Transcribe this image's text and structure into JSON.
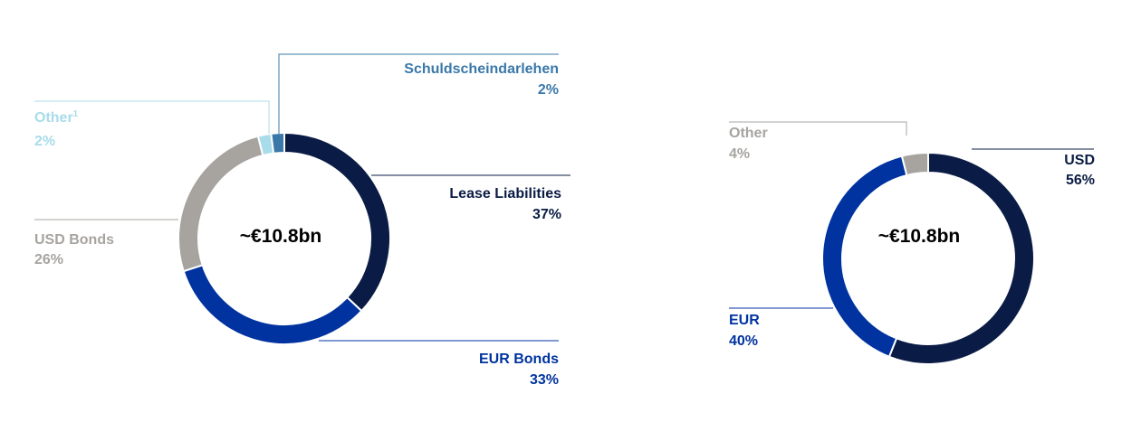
{
  "colors": {
    "navy": "#0a1c45",
    "royal_blue": "#0033a0",
    "grey": "#a7a4a0",
    "light_blue": "#a8dcea",
    "steel_blue": "#3a78aa",
    "center_text": "#000000"
  },
  "chart_data": [
    {
      "type": "pie",
      "variant": "donut",
      "center_label": "~€10.8bn",
      "start_angle_deg": 0,
      "direction": "clockwise",
      "slices": [
        {
          "name": "Lease Liabilities",
          "pct_label": "37%",
          "value": 37,
          "color": "#0a1c45",
          "label_color": "#0a1c45"
        },
        {
          "name": "EUR Bonds",
          "pct_label": "33%",
          "value": 33,
          "color": "#0033a0",
          "label_color": "#0033a0"
        },
        {
          "name": "USD Bonds",
          "pct_label": "26%",
          "value": 26,
          "color": "#a7a4a0",
          "label_color": "#a7a4a0"
        },
        {
          "name": "Other",
          "footnote": "1",
          "pct_label": "2%",
          "value": 2,
          "color": "#a8dcea",
          "label_color": "#a8dcea"
        },
        {
          "name": "Schuldscheindarlehen",
          "pct_label": "2%",
          "value": 2,
          "color": "#3a78aa",
          "label_color": "#3a78aa"
        }
      ]
    },
    {
      "type": "pie",
      "variant": "donut",
      "center_label": "~€10.8bn",
      "start_angle_deg": 0,
      "direction": "clockwise",
      "slices": [
        {
          "name": "USD",
          "pct_label": "56%",
          "value": 56,
          "color": "#0a1c45",
          "label_color": "#0a1c45"
        },
        {
          "name": "EUR",
          "pct_label": "40%",
          "value": 40,
          "color": "#0033a0",
          "label_color": "#0033a0"
        },
        {
          "name": "Other",
          "pct_label": "4%",
          "value": 4,
          "color": "#a7a4a0",
          "label_color": "#a7a4a0"
        }
      ]
    }
  ]
}
